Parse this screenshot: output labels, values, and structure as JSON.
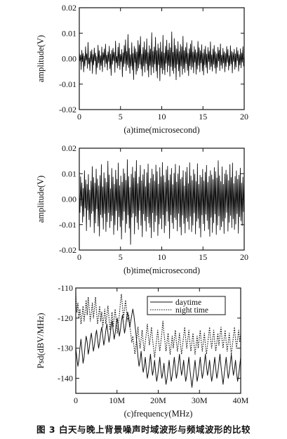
{
  "caption": "图 3   白天与晚上背景噪声时域波形与频域波形的比较",
  "chart_data": [
    {
      "id": "a",
      "type": "line",
      "xlabel": "(a)time(microsecond)",
      "ylabel": "amplitude(V)",
      "xlim": [
        0,
        20
      ],
      "ylim": [
        -0.02,
        0.02
      ],
      "xticks": [
        "0",
        "5",
        "10",
        "15",
        "20"
      ],
      "yticks": [
        "-0.02",
        "-0.01",
        "0.00",
        "0.01",
        "0.02"
      ],
      "series": [
        {
          "style": "solid",
          "x_start": 0,
          "x_end": 20,
          "values": [
            0.0026,
            -0.0008,
            0.0015,
            -0.0043,
            0.0033,
            -0.0012,
            0.0021,
            -0.0052,
            0.0011,
            -0.0029,
            0.0047,
            -0.0006,
            0.0019,
            -0.0038,
            0.0064,
            -0.0021,
            0.0003,
            -0.0047,
            0.0029,
            -0.0013,
            0.0035,
            -0.0058,
            0.0016,
            -0.0024,
            0.0042,
            -0.0009,
            0.0022,
            -0.0061,
            0.0008,
            -0.0035,
            0.0053,
            -0.0017,
            0.0031,
            -0.0044,
            0.0012,
            -0.0027,
            0.0046,
            -0.0051,
            0.0024,
            -0.0006,
            0.0038,
            -0.0033,
            0.0057,
            -0.0019,
            0.0014,
            -0.0045,
            0.0027,
            -0.0011,
            0.0049,
            -0.0039,
            0.0018,
            -0.0066,
            0.0033,
            -0.0022,
            0.0041,
            -0.0008,
            0.0025,
            -0.0054,
            0.0069,
            -0.0016,
            0.0009,
            -0.0037,
            0.0045,
            -0.0028,
            0.0061,
            -0.0043,
            0.0017,
            -0.0012,
            0.0036,
            -0.0071,
            0.0023,
            -0.0031,
            0.0052,
            -0.0019,
            0.0074,
            -0.0047,
            0.0028,
            -0.0024,
            0.0095,
            -0.0035,
            0.0041,
            -0.0058,
            0.0016,
            -0.0029,
            0.0063,
            -0.0044,
            0.0021,
            -0.0082,
            0.0048,
            -0.0015,
            0.0039,
            -0.0062,
            0.0026,
            -0.0048,
            0.0071,
            -0.0037,
            0.0054,
            -0.0022,
            0.0087,
            -0.0041,
            0.0018,
            -0.0068,
            0.0044,
            -0.0029,
            0.0066,
            -0.0053,
            0.0035,
            -0.0019,
            0.0078,
            -0.0046,
            0.0024,
            -0.0072,
            0.0051,
            -0.0027,
            0.0038,
            -0.0064,
            0.0102,
            -0.0033,
            0.0029,
            -0.0055,
            0.0046,
            -0.0021,
            0.0084,
            -0.0049,
            0.0032,
            -0.0076,
            0.0058,
            -0.0024,
            0.0041,
            -0.0087,
            0.0065,
            -0.0036,
            0.0027,
            -0.0059,
            0.0092,
            -0.0044,
            0.0022,
            -0.0063,
            0.0049,
            -0.0018,
            0.0073,
            -0.0052,
            0.0034,
            -0.0027,
            0.0061,
            -0.0069,
            0.0043,
            -0.0031,
            0.0105,
            -0.0047,
            0.0025,
            -0.0058,
            0.0079,
            -0.0036,
            0.0052,
            -0.0083,
            0.0038,
            -0.0022,
            0.0067,
            -0.0048,
            0.0028,
            -0.0071,
            0.0056,
            -0.0029,
            0.0047,
            -0.0062,
            0.0088,
            -0.0039,
            0.0031,
            -0.0054,
            0.0044,
            -0.0019,
            0.0063,
            -0.0046,
            0.0021,
            -0.0067,
            0.0039,
            -0.0028,
            0.0057,
            -0.0043,
            0.0071,
            -0.0033,
            0.0026,
            -0.0056,
            0.0048,
            -0.0014,
            0.0035,
            -0.0061,
            0.0024,
            -0.0041,
            0.0068,
            -0.0026,
            0.0043,
            -0.0052,
            0.0031,
            -0.0017,
            0.0055,
            -0.0048,
            0.0022,
            -0.0064,
            0.0037,
            -0.0024,
            0.0049,
            -0.0035,
            0.0018,
            -0.0057,
            0.0044,
            -0.0012,
            0.0029,
            -0.0043,
            0.0066,
            -0.0031,
            0.0015,
            -0.0049,
            0.0038,
            -0.0022,
            0.0052,
            -0.0037,
            0.0027,
            -0.0058,
            0.0019,
            -0.0034,
            0.0045,
            -0.0009,
            0.0033,
            -0.0047,
            0.0058,
            -0.0026,
            0.0014,
            -0.0039,
            0.0041,
            -0.0017,
            0.0027,
            -0.0052,
            0.0021,
            -0.0031,
            0.0048,
            -0.0014,
            0.0036,
            -0.0045,
            0.0012,
            -0.0028,
            0.0051,
            -0.0021,
            0.0029,
            -0.0056,
            0.0024,
            -0.0011,
            0.0037,
            -0.0042,
            0.0019,
            -0.0033,
            0.0044,
            -0.0008,
            0.0031,
            -0.0049,
            0.0016,
            -0.0025,
            0.0039,
            -0.0036,
            0.0022,
            -0.0014,
            0.0047,
            -0.0029,
            0.0013
          ]
        }
      ]
    },
    {
      "id": "b",
      "type": "line",
      "xlabel": "(b)time(microsecond)",
      "ylabel": "amplitude(V)",
      "xlim": [
        0,
        20
      ],
      "ylim": [
        -0.02,
        0.02
      ],
      "xticks": [
        "0",
        "5",
        "10",
        "15",
        "20"
      ],
      "yticks": [
        "-0.02",
        "-0.01",
        "0.00",
        "0.01",
        "0.02"
      ],
      "series": [
        {
          "style": "solid",
          "x_start": 0,
          "x_end": 20,
          "values": [
            0.0031,
            -0.0052,
            0.0088,
            -0.0027,
            0.0064,
            -0.0091,
            0.0042,
            -0.0068,
            0.0112,
            -0.0035,
            0.0076,
            -0.0124,
            0.0058,
            -0.0043,
            0.0097,
            -0.0081,
            0.0036,
            -0.0109,
            0.0071,
            -0.0056,
            0.0128,
            -0.0047,
            0.0085,
            -0.0132,
            0.0063,
            -0.0094,
            0.0118,
            -0.0038,
            0.0079,
            -0.0106,
            0.0052,
            -0.0145,
            0.0093,
            -0.0061,
            0.0136,
            -0.0072,
            0.0048,
            -0.0118,
            0.0104,
            -0.0057,
            0.0082,
            -0.0127,
            0.0066,
            -0.0089,
            0.0149,
            -0.0053,
            0.0095,
            -0.0112,
            0.0041,
            -0.0086,
            0.0121,
            -0.0064,
            0.0087,
            -0.0139,
            0.0058,
            -0.0101,
            0.0114,
            -0.0045,
            0.0078,
            -0.0123,
            0.0142,
            -0.0069,
            0.0053,
            -0.0108,
            0.0091,
            -0.0157,
            0.0067,
            -0.0083,
            0.0119,
            -0.0048,
            0.0101,
            -0.0131,
            0.0074,
            -0.0096,
            0.0155,
            -0.0062,
            0.0089,
            -0.0114,
            0.0046,
            -0.0178,
            0.0098,
            -0.0071,
            0.0126,
            -0.0055,
            0.0084,
            -0.0137,
            0.0109,
            -0.0067,
            0.0152,
            -0.0092,
            0.0061,
            -0.0119,
            0.0087,
            -0.0044,
            0.0133,
            -0.0103,
            0.0072,
            -0.0148,
            0.0096,
            -0.0058,
            0.0117,
            -0.0085,
            0.0049,
            -0.0126,
            0.0104,
            -0.0069,
            0.0138,
            -0.0094,
            0.0063,
            -0.0111,
            0.0082,
            -0.0152,
            0.0118,
            -0.0053,
            0.0097,
            -0.0128,
            0.0071,
            -0.0089,
            0.0134,
            -0.0064,
            0.0108,
            -0.0143,
            0.0059,
            -0.0098,
            0.0124,
            -0.0076,
            0.0088,
            -0.0117,
            0.0144,
            -0.0061,
            0.0093,
            -0.0132,
            0.0066,
            -0.0104,
            0.0115,
            -0.0048,
            0.0129,
            -0.0087,
            0.0074,
            -0.0154,
            0.0096,
            -0.0062,
            0.0121,
            -0.0093,
            0.0057,
            -0.0116,
            0.0102,
            -0.0072,
            0.0137,
            -0.0081,
            0.0067,
            -0.0125,
            0.0099,
            -0.0056,
            0.0131,
            -0.0109,
            0.0078,
            -0.0141,
            0.0085,
            -0.0063,
            0.0112,
            -0.0096,
            0.0052,
            -0.0133,
            0.0107,
            -0.0074,
            0.0125,
            -0.0088,
            0.0061,
            -0.0119,
            0.0143,
            -0.0067,
            0.0091,
            -0.0128,
            0.0073,
            -0.0102,
            0.0116,
            -0.0054,
            0.0098,
            -0.0137,
            0.0069,
            -0.0087,
            0.0139,
            -0.0076,
            0.0058,
            -0.0113,
            0.0094,
            -0.0149,
            0.0086,
            -0.0062,
            0.0117,
            -0.0097,
            0.0071,
            -0.0124,
            0.0106,
            -0.0059,
            0.0133,
            -0.0084,
            0.0066,
            -0.0118,
            0.0089,
            -0.0146,
            0.0112,
            -0.0071,
            0.0095,
            -0.0131,
            0.0077,
            -0.0093,
            0.0124,
            -0.0058,
            0.0108,
            -0.0139,
            0.0083,
            -0.0102,
            0.0151,
            -0.0066,
            0.0092,
            -0.0121,
            0.0069,
            -0.0108,
            0.0127,
            -0.0087,
            0.0058,
            -0.0135,
            0.0099,
            -0.0074,
            0.0114,
            -0.0052,
            0.0096,
            -0.0126,
            0.0073,
            -0.0091,
            0.0136,
            -0.0064,
            0.0085,
            -0.0112,
            0.0142,
            -0.0077,
            0.0061,
            -0.0119,
            0.0089,
            -0.0098,
            0.0111,
            -0.0057,
            0.0078,
            -0.0134,
            0.0094,
            -0.0069,
            0.0122,
            -0.0085,
            0.0063,
            -0.0104,
            0.0087,
            -0.0049,
            0.0071
          ]
        }
      ]
    },
    {
      "id": "c",
      "type": "line",
      "xlabel": "(c)frequency(MHz)",
      "ylabel": "Psd(dBV/MHz)",
      "xlim": [
        0,
        40
      ],
      "ylim": [
        -145,
        -110
      ],
      "xticks": [
        "0",
        "10M",
        "20M",
        "30M",
        "40M"
      ],
      "yticks": [
        "-110",
        "-120",
        "-130",
        "-140"
      ],
      "yticks_values": [
        -110,
        -120,
        -130,
        -140
      ],
      "legend": {
        "position": "top-right",
        "entries": [
          "daytime",
          "night time"
        ]
      },
      "series": [
        {
          "name": "daytime",
          "style": "solid",
          "x_start": 0,
          "x_end": 40,
          "values": [
            -130,
            -133,
            -136,
            -134,
            -130,
            -127,
            -131,
            -135,
            -133,
            -129,
            -126,
            -128,
            -132,
            -130,
            -127,
            -125,
            -128,
            -131,
            -129,
            -126,
            -124,
            -127,
            -130,
            -128,
            -125,
            -123,
            -126,
            -129,
            -127,
            -124,
            -122,
            -125,
            -128,
            -126,
            -123,
            -121,
            -124,
            -127,
            -125,
            -122,
            -120,
            -123,
            -126,
            -124,
            -121,
            -119,
            -122,
            -125,
            -123,
            -120,
            -118,
            -120,
            -123,
            -121,
            -119,
            -117,
            -119,
            -122,
            -125,
            -129,
            -133,
            -136,
            -134,
            -131,
            -135,
            -138,
            -136,
            -133,
            -137,
            -140,
            -138,
            -135,
            -132,
            -136,
            -139,
            -137,
            -134,
            -138,
            -141,
            -139,
            -136,
            -133,
            -137,
            -140,
            -138,
            -135,
            -139,
            -142,
            -140,
            -137,
            -134,
            -138,
            -141,
            -139,
            -136,
            -133,
            -137,
            -140,
            -138,
            -135,
            -132,
            -136,
            -139,
            -137,
            -134,
            -138,
            -141,
            -139,
            -136,
            -133,
            -137,
            -140,
            -143,
            -140,
            -137,
            -134,
            -138,
            -141,
            -139,
            -136,
            -133,
            -137,
            -140,
            -138,
            -135,
            -132,
            -136,
            -139,
            -137,
            -134,
            -138,
            -141,
            -139,
            -136,
            -133,
            -137,
            -140,
            -138,
            -135,
            -132,
            -136,
            -139,
            -142,
            -139,
            -136,
            -133,
            -137,
            -140,
            -138,
            -135,
            -132,
            -136,
            -139,
            -137,
            -134,
            -138,
            -141,
            -139,
            -136,
            -133
          ]
        },
        {
          "name": "night time",
          "style": "dotted",
          "x_start": 0,
          "x_end": 40,
          "values": [
            -112,
            -118,
            -115,
            -120,
            -117,
            -122,
            -119,
            -116,
            -121,
            -118,
            -114,
            -119,
            -113,
            -117,
            -121,
            -118,
            -115,
            -120,
            -117,
            -113,
            -118,
            -122,
            -119,
            -116,
            -121,
            -118,
            -123,
            -120,
            -117,
            -122,
            -119,
            -116,
            -120,
            -124,
            -121,
            -118,
            -123,
            -120,
            -117,
            -121,
            -125,
            -122,
            -119,
            -115,
            -112,
            -116,
            -120,
            -117,
            -114,
            -118,
            -121,
            -119,
            -122,
            -125,
            -128,
            -126,
            -129,
            -132,
            -129,
            -126,
            -123,
            -127,
            -130,
            -127,
            -124,
            -128,
            -131,
            -128,
            -125,
            -122,
            -126,
            -129,
            -126,
            -123,
            -127,
            -130,
            -133,
            -130,
            -127,
            -124,
            -128,
            -131,
            -128,
            -125,
            -121,
            -125,
            -128,
            -131,
            -128,
            -125,
            -129,
            -132,
            -129,
            -126,
            -130,
            -127,
            -124,
            -128,
            -131,
            -128,
            -125,
            -129,
            -132,
            -129,
            -126,
            -123,
            -127,
            -130,
            -127,
            -124,
            -128,
            -131,
            -128,
            -125,
            -129,
            -132,
            -129,
            -126,
            -130,
            -127,
            -124,
            -128,
            -131,
            -128,
            -125,
            -129,
            -132,
            -129,
            -126,
            -123,
            -127,
            -130,
            -127,
            -124,
            -128,
            -131,
            -128,
            -125,
            -129,
            -126,
            -123,
            -127,
            -130,
            -127,
            -124,
            -128,
            -131,
            -128,
            -125,
            -129,
            -132,
            -129,
            -126,
            -123,
            -127,
            -130,
            -127,
            -124,
            -128,
            -125
          ]
        }
      ]
    }
  ]
}
